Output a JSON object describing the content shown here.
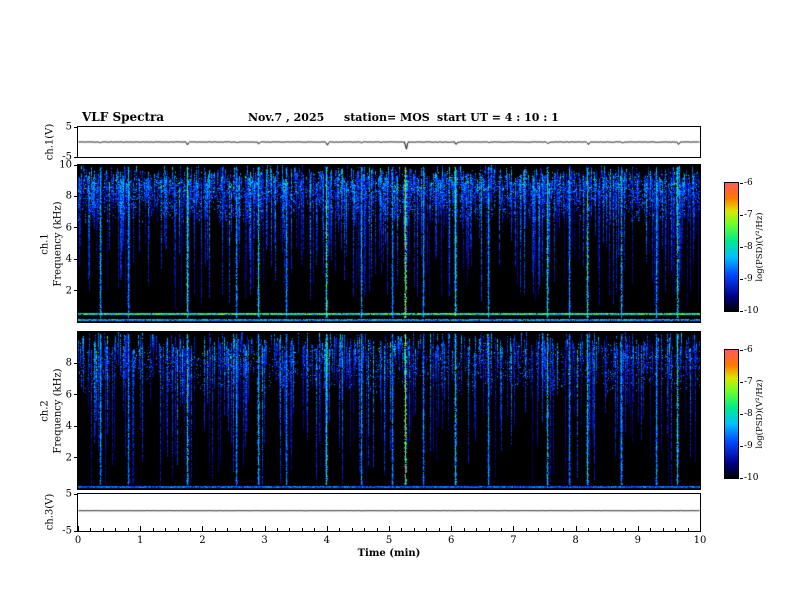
{
  "header": {
    "title": "VLF Spectra",
    "date": "Nov.7  , 2025",
    "station": "station= MOS",
    "start_ut": "start UT =  4 : 10 : 1"
  },
  "xaxis": {
    "label": "Time (min)",
    "lim": [
      0,
      10
    ],
    "ticks": [
      0,
      1,
      2,
      3,
      4,
      5,
      6,
      7,
      8,
      9,
      10
    ]
  },
  "chart_data": [
    {
      "type": "line",
      "panel": "ch1-voltage",
      "ylabel": "ch.1(V)",
      "ylim": [
        -5,
        5
      ],
      "yticks": [
        5,
        -5
      ],
      "xlim": [
        0,
        10
      ],
      "summary": "Flat trace near 0 V with small impulsive deflections at strong sferic times (largest near t = 5.3 min)."
    },
    {
      "type": "heatmap",
      "panel": "ch1-spectrogram",
      "channel": "ch.1",
      "ylabel": "Frequency (kHz)",
      "ylim": [
        0,
        10
      ],
      "yticks": [
        10,
        8,
        6,
        4,
        2
      ],
      "xlim": [
        0,
        10
      ],
      "colorbar": {
        "label": "log(PSD)(V²/Hz)",
        "ticks": [
          -6,
          -7,
          -8,
          -9,
          -10
        ],
        "lim": [
          -6,
          -10
        ]
      },
      "description": "Black background with dense vertical broadband sferic streaks; continuous noise band between about 6.5 and 9.7 kHz; persistent narrow cyan line near 0.5 kHz across all times; bright full-band events at the times in render_hints.events, with a red-orange intense event near 5.3 min."
    },
    {
      "type": "heatmap",
      "panel": "ch2-spectrogram",
      "channel": "ch.2",
      "ylabel": "Frequency (kHz)",
      "ylim": [
        0,
        10
      ],
      "yticks": [
        8,
        6,
        4,
        2
      ],
      "xlim": [
        0,
        10
      ],
      "colorbar": {
        "label": "log(PSD)(V²/Hz)",
        "ticks": [
          -6,
          -7,
          -8,
          -9,
          -10
        ],
        "lim": [
          -6,
          -10
        ]
      },
      "description": "Sparser vertical sferic streaks spanning roughly 1-9.5 kHz with a patchier high-frequency noise band; same strong events as ch.1 including the red-orange event near 5.3 min."
    },
    {
      "type": "line",
      "panel": "ch3-voltage",
      "ylabel": "ch.3(V)",
      "ylim": [
        -5,
        5
      ],
      "yticks": [
        5,
        -5
      ],
      "xlim": [
        0,
        10
      ],
      "summary": "Flat trace slightly above 0 V (about +0.5 V) with no visible transients."
    }
  ],
  "render_hints": {
    "background": "#000000",
    "axis_color": "#000000",
    "colormap": [
      [
        0.0,
        0,
        0,
        0
      ],
      [
        0.12,
        0,
        0,
        140
      ],
      [
        0.28,
        0,
        70,
        255
      ],
      [
        0.42,
        0,
        190,
        255
      ],
      [
        0.55,
        0,
        235,
        140
      ],
      [
        0.68,
        110,
        255,
        40
      ],
      [
        0.78,
        220,
        230,
        0
      ],
      [
        0.88,
        255,
        120,
        0
      ],
      [
        1.0,
        255,
        90,
        90
      ]
    ],
    "events": [
      {
        "t": 0.35,
        "i": 0.5
      },
      {
        "t": 0.8,
        "i": 0.45
      },
      {
        "t": 1.75,
        "i": 0.62
      },
      {
        "t": 2.55,
        "i": 0.48
      },
      {
        "t": 2.9,
        "i": 0.58
      },
      {
        "t": 3.35,
        "i": 0.45
      },
      {
        "t": 4.0,
        "i": 0.66
      },
      {
        "t": 4.55,
        "i": 0.5
      },
      {
        "t": 5.05,
        "i": 0.45
      },
      {
        "t": 5.27,
        "i": 0.92
      },
      {
        "t": 5.55,
        "i": 0.45
      },
      {
        "t": 6.07,
        "i": 0.62
      },
      {
        "t": 6.6,
        "i": 0.48
      },
      {
        "t": 7.55,
        "i": 0.58
      },
      {
        "t": 7.9,
        "i": 0.45
      },
      {
        "t": 8.2,
        "i": 0.6
      },
      {
        "t": 8.75,
        "i": 0.5
      },
      {
        "t": 9.3,
        "i": 0.48
      },
      {
        "t": 9.65,
        "i": 0.62
      }
    ],
    "spec1": {
      "seed": 1371,
      "streak_prob": 0.72,
      "max_depth": 7.5,
      "event_scale": 1.0,
      "band": {
        "ftop": 9.7,
        "fbot": 6.3,
        "col_prob": 0.96,
        "density": 0.4
      },
      "hbands": [
        {
          "f": 0.5,
          "h": 2,
          "i": 0.55
        },
        {
          "f": 0.14,
          "h": 2,
          "i": 0.4
        }
      ]
    },
    "spec2": {
      "seed": 8642,
      "streak_prob": 0.5,
      "max_depth": 9.0,
      "event_scale": 0.95,
      "band": {
        "ftop": 9.4,
        "fbot": 6.0,
        "col_prob": 0.75,
        "density": 0.22
      },
      "hbands": [
        {
          "f": 0.12,
          "h": 2,
          "i": 0.32
        }
      ]
    },
    "strip1": {
      "seed": 11,
      "base": 0.0,
      "noise": 0.18,
      "spikes": true
    },
    "strip3": {
      "seed": 12,
      "base": 0.5,
      "noise": 0.06,
      "spikes": false
    }
  }
}
